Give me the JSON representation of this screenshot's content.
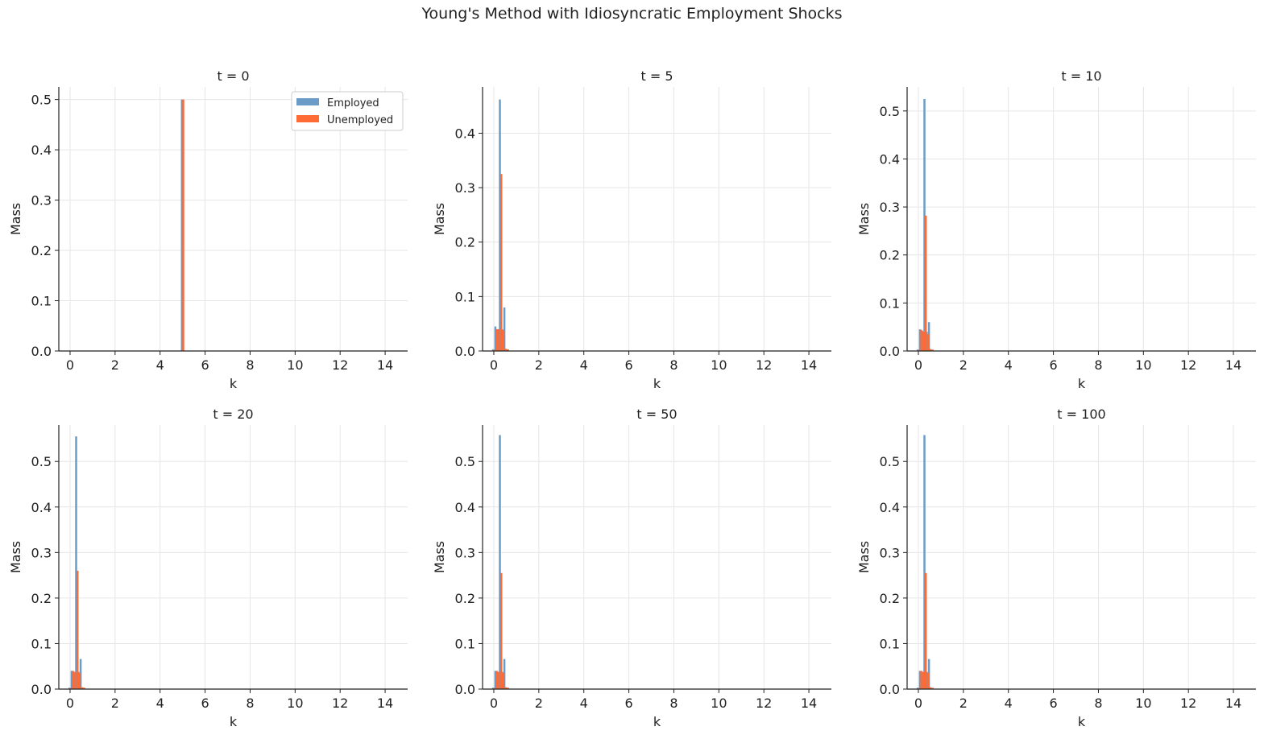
{
  "figure": {
    "title": "Young's Method with Idiosyncratic Employment Shocks"
  },
  "colors": {
    "employed": "#6b9bc7",
    "unemployed": "#ff6b35",
    "grid": "#e6e6e6",
    "axis": "#222222"
  },
  "chart_data": [
    {
      "type": "bar",
      "title": "t = 0",
      "xlabel": "k",
      "ylabel": "Mass",
      "xlim": [
        -0.5,
        15
      ],
      "ylim": [
        0,
        0.525
      ],
      "xticks": [
        0,
        2,
        4,
        6,
        8,
        10,
        12,
        14
      ],
      "xtick_labels": [
        "0",
        "2",
        "4",
        "6",
        "8",
        "10",
        "12",
        "14"
      ],
      "yticks": [
        0,
        0.1,
        0.2,
        0.3,
        0.4,
        0.5
      ],
      "ytick_labels": [
        "0.0",
        "0.1",
        "0.2",
        "0.3",
        "0.4",
        "0.5"
      ],
      "legend": {
        "position": "top-right",
        "entries": [
          "Employed",
          "Unemployed"
        ]
      },
      "grid": true,
      "series": [
        {
          "name": "Employed",
          "x": [
            5.0
          ],
          "values": [
            0.5
          ]
        },
        {
          "name": "Unemployed",
          "x": [
            5.0
          ],
          "values": [
            0.5
          ]
        }
      ]
    },
    {
      "type": "bar",
      "title": "t = 5",
      "xlabel": "k",
      "ylabel": "Mass",
      "xlim": [
        -0.5,
        15
      ],
      "ylim": [
        0,
        0.485
      ],
      "xticks": [
        0,
        2,
        4,
        6,
        8,
        10,
        12,
        14
      ],
      "xtick_labels": [
        "0",
        "2",
        "4",
        "6",
        "8",
        "10",
        "12",
        "14"
      ],
      "yticks": [
        0,
        0.1,
        0.2,
        0.3,
        0.4
      ],
      "ytick_labels": [
        "0.0",
        "0.1",
        "0.2",
        "0.3",
        "0.4"
      ],
      "grid": true,
      "series": [
        {
          "name": "Employed",
          "x": [
            0.0,
            0.1,
            0.2,
            0.3,
            0.4,
            0.5,
            0.6
          ],
          "values": [
            0.003,
            0.045,
            0.04,
            0.462,
            0.04,
            0.08,
            0.003
          ]
        },
        {
          "name": "Unemployed",
          "x": [
            0.0,
            0.1,
            0.2,
            0.3,
            0.4,
            0.5,
            0.6
          ],
          "values": [
            0.002,
            0.04,
            0.04,
            0.325,
            0.038,
            0.004,
            0.003
          ]
        }
      ]
    },
    {
      "type": "bar",
      "title": "t = 10",
      "xlabel": "k",
      "ylabel": "Mass",
      "xlim": [
        -0.5,
        15
      ],
      "ylim": [
        0,
        0.55
      ],
      "xticks": [
        0,
        2,
        4,
        6,
        8,
        10,
        12,
        14
      ],
      "xtick_labels": [
        "0",
        "2",
        "4",
        "6",
        "8",
        "10",
        "12",
        "14"
      ],
      "yticks": [
        0,
        0.1,
        0.2,
        0.3,
        0.4,
        0.5
      ],
      "ytick_labels": [
        "0.0",
        "0.1",
        "0.2",
        "0.3",
        "0.4",
        "0.5"
      ],
      "grid": true,
      "series": [
        {
          "name": "Employed",
          "x": [
            0.0,
            0.1,
            0.2,
            0.3,
            0.4,
            0.5,
            0.6
          ],
          "values": [
            0.003,
            0.045,
            0.042,
            0.525,
            0.04,
            0.06,
            0.003
          ]
        },
        {
          "name": "Unemployed",
          "x": [
            0.0,
            0.1,
            0.2,
            0.3,
            0.4,
            0.5,
            0.6
          ],
          "values": [
            0.002,
            0.044,
            0.04,
            0.282,
            0.035,
            0.004,
            0.003
          ]
        }
      ]
    },
    {
      "type": "bar",
      "title": "t = 20",
      "xlabel": "k",
      "ylabel": "Mass",
      "xlim": [
        -0.5,
        15
      ],
      "ylim": [
        0,
        0.58
      ],
      "xticks": [
        0,
        2,
        4,
        6,
        8,
        10,
        12,
        14
      ],
      "xtick_labels": [
        "0",
        "2",
        "4",
        "6",
        "8",
        "10",
        "12",
        "14"
      ],
      "yticks": [
        0,
        0.1,
        0.2,
        0.3,
        0.4,
        0.5
      ],
      "ytick_labels": [
        "0.0",
        "0.1",
        "0.2",
        "0.3",
        "0.4",
        "0.5"
      ],
      "grid": true,
      "series": [
        {
          "name": "Employed",
          "x": [
            0.0,
            0.1,
            0.2,
            0.3,
            0.4,
            0.5,
            0.6
          ],
          "values": [
            0.003,
            0.04,
            0.038,
            0.555,
            0.038,
            0.066,
            0.003
          ]
        },
        {
          "name": "Unemployed",
          "x": [
            0.0,
            0.1,
            0.2,
            0.3,
            0.4,
            0.5,
            0.6
          ],
          "values": [
            0.002,
            0.04,
            0.038,
            0.26,
            0.036,
            0.004,
            0.003
          ]
        }
      ]
    },
    {
      "type": "bar",
      "title": "t = 50",
      "xlabel": "k",
      "ylabel": "Mass",
      "xlim": [
        -0.5,
        15
      ],
      "ylim": [
        0,
        0.58
      ],
      "xticks": [
        0,
        2,
        4,
        6,
        8,
        10,
        12,
        14
      ],
      "xtick_labels": [
        "0",
        "2",
        "4",
        "6",
        "8",
        "10",
        "12",
        "14"
      ],
      "yticks": [
        0,
        0.1,
        0.2,
        0.3,
        0.4,
        0.5
      ],
      "ytick_labels": [
        "0.0",
        "0.1",
        "0.2",
        "0.3",
        "0.4",
        "0.5"
      ],
      "grid": true,
      "series": [
        {
          "name": "Employed",
          "x": [
            0.0,
            0.1,
            0.2,
            0.3,
            0.4,
            0.5,
            0.6
          ],
          "values": [
            0.003,
            0.04,
            0.038,
            0.558,
            0.038,
            0.066,
            0.003
          ]
        },
        {
          "name": "Unemployed",
          "x": [
            0.0,
            0.1,
            0.2,
            0.3,
            0.4,
            0.5,
            0.6
          ],
          "values": [
            0.002,
            0.04,
            0.038,
            0.255,
            0.036,
            0.004,
            0.003
          ]
        }
      ]
    },
    {
      "type": "bar",
      "title": "t = 100",
      "xlabel": "k",
      "ylabel": "Mass",
      "xlim": [
        -0.5,
        15
      ],
      "ylim": [
        0,
        0.58
      ],
      "xticks": [
        0,
        2,
        4,
        6,
        8,
        10,
        12,
        14
      ],
      "xtick_labels": [
        "0",
        "2",
        "4",
        "6",
        "8",
        "10",
        "12",
        "14"
      ],
      "yticks": [
        0,
        0.1,
        0.2,
        0.3,
        0.4,
        0.5
      ],
      "ytick_labels": [
        "0.0",
        "0.1",
        "0.2",
        "0.3",
        "0.4",
        "0.5"
      ],
      "grid": true,
      "series": [
        {
          "name": "Employed",
          "x": [
            0.0,
            0.1,
            0.2,
            0.3,
            0.4,
            0.5,
            0.6
          ],
          "values": [
            0.003,
            0.04,
            0.038,
            0.558,
            0.038,
            0.066,
            0.003
          ]
        },
        {
          "name": "Unemployed",
          "x": [
            0.0,
            0.1,
            0.2,
            0.3,
            0.4,
            0.5,
            0.6
          ],
          "values": [
            0.002,
            0.04,
            0.038,
            0.255,
            0.036,
            0.004,
            0.003
          ]
        }
      ]
    }
  ]
}
